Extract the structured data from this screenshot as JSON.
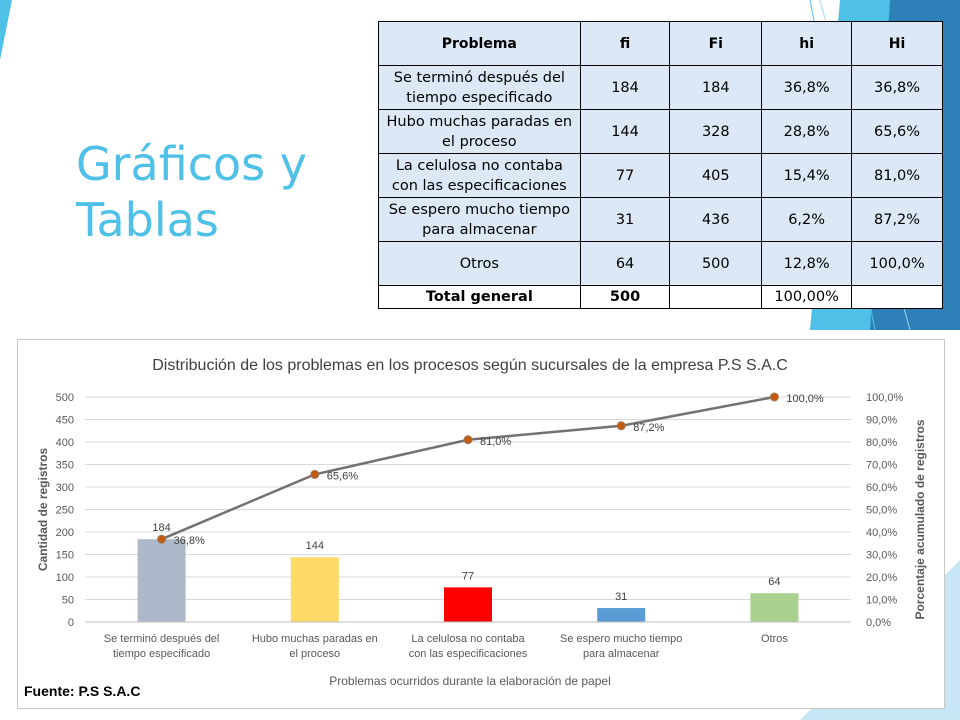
{
  "slide": {
    "title_line1": "Gráficos y",
    "title_line2": "Tablas"
  },
  "table": {
    "headers": [
      "Problema",
      "fi",
      "Fi",
      "hi",
      "Hi"
    ],
    "rows": [
      {
        "problema": "Se terminó después del tiempo especificado",
        "fi": "184",
        "Fi": "184",
        "hi": "36,8%",
        "Hi": "36,8%"
      },
      {
        "problema": "Hubo muchas paradas en el proceso",
        "fi": "144",
        "Fi": "328",
        "hi": "28,8%",
        "Hi": "65,6%"
      },
      {
        "problema": "La celulosa no contaba con las especificaciones",
        "fi": "77",
        "Fi": "405",
        "hi": "15,4%",
        "Hi": "81,0%"
      },
      {
        "problema": "Se espero mucho tiempo para almacenar",
        "fi": "31",
        "Fi": "436",
        "hi": "6,2%",
        "Hi": "87,2%"
      },
      {
        "problema": "Otros",
        "fi": "64",
        "Fi": "500",
        "hi": "12,8%",
        "Hi": "100,0%"
      }
    ],
    "total": {
      "label": "Total general",
      "fi": "500",
      "hi": "100,00%"
    }
  },
  "chart_data": {
    "type": "bar",
    "title": "Distribución de los problemas en los procesos según sucursales de la empresa P.S S.A.C",
    "xlabel": "Problemas ocurridos durante la elaboración de papel",
    "ylabel": "Cantidad de registros",
    "y2label": "Porcentaje acumulado de registros",
    "categories": [
      "Se terminó después del tiempo especificado",
      "Hubo muchas paradas en el proceso",
      "La celulosa no contaba con las especificaciones",
      "Se espero mucho tiempo para almacenar",
      "Otros"
    ],
    "series": [
      {
        "type": "bar",
        "values": [
          184,
          144,
          77,
          31,
          64
        ],
        "colors": [
          "#adb9ca",
          "#ffd966",
          "#ff0000",
          "#5b9bd5",
          "#a9d18e"
        ]
      },
      {
        "type": "line",
        "axis": "y2",
        "values": [
          36.8,
          65.6,
          81.0,
          87.2,
          100.0
        ],
        "labels": [
          "36,8%",
          "65,6%",
          "81,0%",
          "87,2%",
          "100,0%"
        ],
        "color": "#767171",
        "marker_color": "#c55a11"
      }
    ],
    "ylim": [
      0,
      500
    ],
    "yticks": [
      "0",
      "50",
      "100",
      "150",
      "200",
      "250",
      "300",
      "350",
      "400",
      "450",
      "500"
    ],
    "y2lim": [
      0,
      100
    ],
    "y2ticks": [
      "0,0%",
      "10,0%",
      "20,0%",
      "30,0%",
      "40,0%",
      "50,0%",
      "60,0%",
      "70,0%",
      "80,0%",
      "90,0%",
      "100,0%"
    ],
    "grid": true,
    "source": "Fuente: P.S S.A.C"
  }
}
